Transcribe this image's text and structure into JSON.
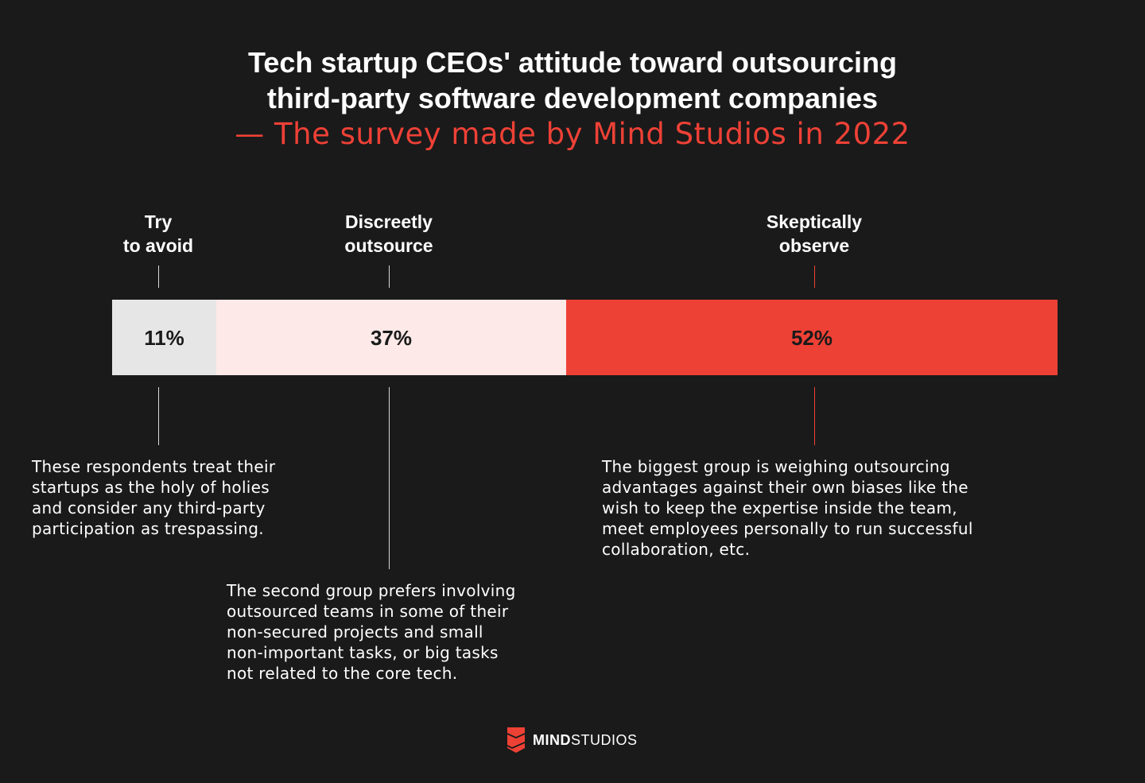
{
  "title": {
    "line1": "Tech startup CEOs' attitude toward outsourcing",
    "line2": "third-party software development companies",
    "subtitle": "— The survey made by Mind Studios in 2022"
  },
  "colors": {
    "background": "#1a1a1a",
    "accent": "#ee4136",
    "segment_avoid": "#e6e6e6",
    "segment_discreet": "#fce9e8",
    "segment_skeptical": "#ee4136"
  },
  "chart_data": {
    "type": "bar",
    "stacked": true,
    "orientation": "horizontal",
    "unit": "%",
    "categories": [
      "Try to avoid",
      "Discreetly outsource",
      "Skeptically observe"
    ],
    "values": [
      11,
      37,
      52
    ],
    "value_labels": [
      "11%",
      "37%",
      "52%"
    ],
    "label_lines": [
      [
        "Try",
        "to avoid"
      ],
      [
        "Discreetly",
        "outsource"
      ],
      [
        "Skeptically",
        "observe"
      ]
    ]
  },
  "descriptions": [
    {
      "lines": [
        "These respondents treat their",
        "startups as the holy of holies",
        "and consider any third-party",
        "participation as trespassing."
      ]
    },
    {
      "lines": [
        "The second group prefers involving",
        "outsourced teams in some of their",
        "non-secured projects and small",
        "non-important tasks, or big tasks",
        "not related to the core tech."
      ]
    },
    {
      "lines": [
        "The biggest group is weighing outsourcing",
        "advantages against their own biases like the",
        "wish to keep the expertise inside the team,",
        "meet employees personally to run successful",
        "collaboration, etc."
      ]
    }
  ],
  "brand": {
    "bold": "MIND",
    "regular": "STUDIOS",
    "icon": "mind-studios-logo-icon"
  }
}
